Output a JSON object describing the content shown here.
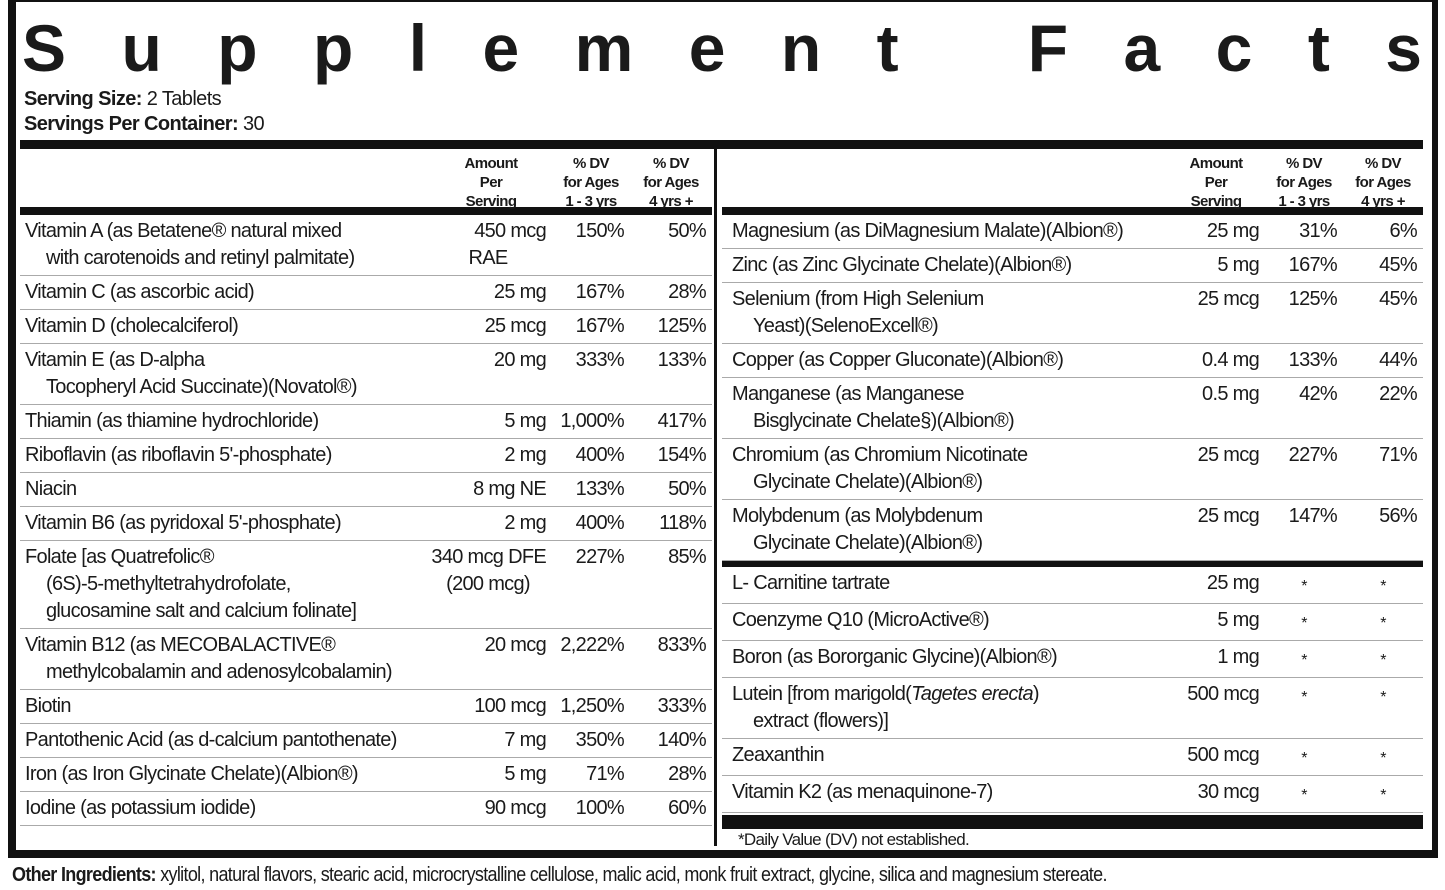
{
  "title": "Supplement Facts",
  "serving_size": {
    "label": "Serving Size:",
    "value": "2 Tablets"
  },
  "servings_per_container": {
    "label": "Servings Per Container:",
    "value": "30"
  },
  "headers": {
    "amount": [
      "Amount",
      "Per",
      "Serving"
    ],
    "dv1": [
      "% DV",
      "for Ages",
      "1 - 3  yrs"
    ],
    "dv2": [
      "% DV",
      "for Ages",
      "4 yrs +"
    ]
  },
  "left_rows": [
    {
      "lines": [
        "Vitamin A (as Betatene® natural mixed",
        "with carotenoids and retinyl palmitate)"
      ],
      "amount": [
        "450 mcg",
        "RAE"
      ],
      "dv1": "150%",
      "dv2": "50%"
    },
    {
      "lines": [
        "Vitamin C (as ascorbic acid)"
      ],
      "amount": [
        "25 mg"
      ],
      "dv1": "167%",
      "dv2": "28%"
    },
    {
      "lines": [
        "Vitamin D (cholecalciferol)"
      ],
      "amount": [
        "25 mcg"
      ],
      "dv1": "167%",
      "dv2": "125%"
    },
    {
      "lines": [
        "Vitamin E (as D-alpha",
        "Tocopheryl Acid Succinate)(Novatol®)"
      ],
      "amount": [
        "20 mg"
      ],
      "dv1": "333%",
      "dv2": "133%"
    },
    {
      "lines": [
        "Thiamin (as thiamine hydrochloride)"
      ],
      "amount": [
        "5 mg"
      ],
      "dv1": "1,000%",
      "dv2": "417%"
    },
    {
      "lines": [
        "Riboflavin (as riboflavin 5'-phosphate)"
      ],
      "amount": [
        "2 mg"
      ],
      "dv1": "400%",
      "dv2": "154%"
    },
    {
      "lines": [
        "Niacin"
      ],
      "amount": [
        "8 mg NE"
      ],
      "dv1": "133%",
      "dv2": "50%"
    },
    {
      "lines": [
        "Vitamin B6 (as pyridoxal 5'-phosphate)"
      ],
      "amount": [
        "2 mg"
      ],
      "dv1": "400%",
      "dv2": "118%"
    },
    {
      "lines": [
        "Folate [as Quatrefolic®",
        "(6S)-5-methyltetrahydrofolate,",
        "glucosamine salt and calcium folinate]"
      ],
      "amount": [
        "340 mcg DFE",
        "(200 mcg)"
      ],
      "dv1": "227%",
      "dv2": "85%"
    },
    {
      "lines": [
        "Vitamin B12 (as MECOBALACTIVE®",
        "methylcobalamin and adenosylcobalamin)"
      ],
      "amount": [
        "20 mcg"
      ],
      "dv1": "2,222%",
      "dv2": "833%"
    },
    {
      "lines": [
        "Biotin"
      ],
      "amount": [
        "100 mcg"
      ],
      "dv1": "1,250%",
      "dv2": "333%"
    },
    {
      "lines": [
        "Pantothenic Acid (as d-calcium pantothenate)"
      ],
      "amount": [
        "7 mg"
      ],
      "dv1": "350%",
      "dv2": "140%"
    },
    {
      "lines": [
        "Iron (as Iron Glycinate Chelate)(Albion®)"
      ],
      "amount": [
        "5 mg"
      ],
      "dv1": "71%",
      "dv2": "28%"
    },
    {
      "lines": [
        "Iodine (as potassium iodide)"
      ],
      "amount": [
        "90 mcg"
      ],
      "dv1": "100%",
      "dv2": "60%"
    }
  ],
  "right_rows_a": [
    {
      "lines": [
        "Magnesium (as DiMagnesium Malate)(Albion®)"
      ],
      "amount": [
        "25 mg"
      ],
      "dv1": "31%",
      "dv2": "6%"
    },
    {
      "lines": [
        "Zinc (as Zinc Glycinate Chelate)(Albion®)"
      ],
      "amount": [
        "5 mg"
      ],
      "dv1": "167%",
      "dv2": "45%"
    },
    {
      "lines": [
        "Selenium (from High Selenium",
        "Yeast)(SelenoExcell®)"
      ],
      "amount": [
        "25 mcg"
      ],
      "dv1": "125%",
      "dv2": "45%"
    },
    {
      "lines": [
        "Copper (as Copper Gluconate)(Albion®)"
      ],
      "amount": [
        "0.4 mg"
      ],
      "dv1": "133%",
      "dv2": "44%"
    },
    {
      "lines": [
        "Manganese (as Manganese",
        "Bisglycinate Chelate§)(Albion®)"
      ],
      "amount": [
        "0.5 mg"
      ],
      "dv1": "42%",
      "dv2": "22%"
    },
    {
      "lines": [
        "Chromium (as Chromium Nicotinate",
        "Glycinate Chelate)(Albion®)"
      ],
      "amount": [
        "25 mcg"
      ],
      "dv1": "227%",
      "dv2": "71%"
    },
    {
      "lines": [
        "Molybdenum (as Molybdenum",
        "Glycinate Chelate)(Albion®)"
      ],
      "amount": [
        "25 mcg"
      ],
      "dv1": "147%",
      "dv2": "56%"
    }
  ],
  "right_rows_b": [
    {
      "lines": [
        "L- Carnitine tartrate"
      ],
      "amount": [
        "25 mg"
      ],
      "dv1": "*",
      "dv2": "*"
    },
    {
      "lines": [
        "Coenzyme Q10 (MicroActive®)"
      ],
      "amount": [
        "5 mg"
      ],
      "dv1": "*",
      "dv2": "*"
    },
    {
      "lines": [
        "Boron (as Bororganic Glycine)(Albion®)"
      ],
      "amount": [
        "1 mg"
      ],
      "dv1": "*",
      "dv2": "*"
    },
    {
      "lines": [
        "Lutein [from marigold(",
        "extract (flowers)]"
      ],
      "italic": "Tagetes erecta",
      "after_italic": ")",
      "amount": [
        "500 mcg"
      ],
      "dv1": "*",
      "dv2": "*"
    },
    {
      "lines": [
        "Zeaxanthin"
      ],
      "amount": [
        "500 mcg"
      ],
      "dv1": "*",
      "dv2": "*"
    },
    {
      "lines": [
        "Vitamin K2 (as menaquinone-7)"
      ],
      "amount": [
        "30 mcg"
      ],
      "dv1": "*",
      "dv2": "*"
    }
  ],
  "footnote": "*Daily Value (DV) not established.",
  "other_ingredients": {
    "label": "Other Ingredients:",
    "value": "xylitol, natural flavors, stearic acid, microcrystalline cellulose, malic acid, monk fruit extract, glycine, silica and magnesium stereate."
  }
}
